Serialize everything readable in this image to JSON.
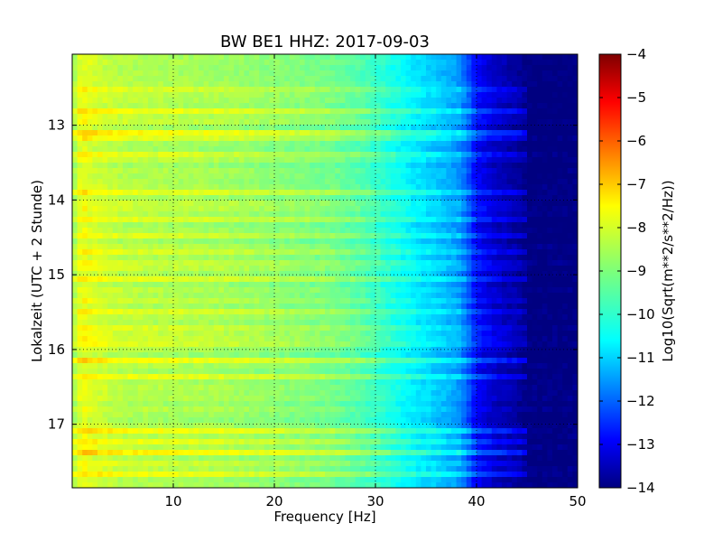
{
  "chart_data": {
    "type": "heatmap",
    "title": "BW BE1 HHZ: 2017-09-03",
    "xlabel": "Frequency [Hz]",
    "ylabel": "Lokalzeit (UTC + 2 Stunde)",
    "colorbar_label": "Log10(Sqrt(m**2/s**2/Hz))",
    "xlim": [
      0,
      50
    ],
    "ylim": [
      12.05,
      17.85
    ],
    "y_inverted": true,
    "clim": [
      -14,
      -4
    ],
    "colormap": "jet",
    "grid": true,
    "x_ticks": [
      10,
      20,
      30,
      40,
      50
    ],
    "x_tick_labels": [
      "10",
      "20",
      "30",
      "40",
      "50"
    ],
    "y_ticks": [
      13,
      14,
      15,
      16,
      17
    ],
    "y_tick_labels": [
      "13",
      "14",
      "15",
      "16",
      "17"
    ],
    "colorbar_ticks": [
      -4,
      -5,
      -6,
      -7,
      -8,
      -9,
      -10,
      -11,
      -12,
      -13,
      -14
    ],
    "colorbar_tick_labels": [
      "−4",
      "−5",
      "−6",
      "−7",
      "−8",
      "−9",
      "−10",
      "−11",
      "−12",
      "−13",
      "−14"
    ],
    "frequency_profile": {
      "frequency": [
        0,
        1,
        2,
        5,
        10,
        15,
        20,
        25,
        28,
        30,
        32,
        34,
        36,
        38,
        39,
        40,
        42,
        44,
        45,
        50
      ],
      "value": [
        -8.8,
        -7.9,
        -8.2,
        -8.5,
        -8.6,
        -8.7,
        -8.9,
        -9.1,
        -9.4,
        -9.7,
        -10.1,
        -10.5,
        -10.8,
        -11.2,
        -11.8,
        -12.8,
        -13.4,
        -13.7,
        -14,
        -14
      ]
    },
    "bright_bands_time": [
      12.5,
      12.63,
      12.82,
      12.92,
      13.1,
      13.2,
      13.42,
      13.88,
      14.08,
      14.28,
      14.5,
      14.72,
      14.88,
      15.08,
      15.32,
      15.52,
      15.68,
      15.82,
      15.96,
      16.15,
      16.38,
      17.1,
      17.22,
      17.38,
      17.5,
      17.65
    ]
  }
}
